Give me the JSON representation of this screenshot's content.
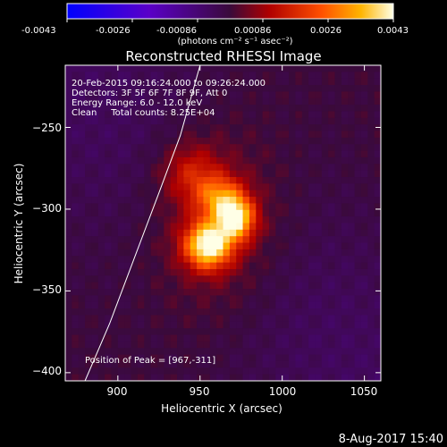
{
  "colorbar": {
    "ticks": [
      "-0.0043",
      "-0.0026",
      "-0.00086",
      "0.00086",
      "0.0026",
      "0.0043"
    ],
    "units": "(photons cm⁻² s⁻¹ asec⁻²)",
    "range": [
      -0.0043,
      0.0043
    ]
  },
  "footer": {
    "datestamp": "8-Aug-2017 15:40"
  },
  "chart_data": {
    "type": "heatmap",
    "title": "Reconstructed RHESSI Image",
    "xlabel": "Heliocentric X (arcsec)",
    "ylabel": "Heliocentric Y (arcsec)",
    "xlim": [
      868,
      1060
    ],
    "ylim": [
      -405,
      -212
    ],
    "x_ticks": [
      900,
      950,
      1000,
      1050
    ],
    "y_ticks": [
      -250,
      -300,
      -350,
      -400
    ],
    "x_tick_labels": [
      "900",
      "950",
      "1000",
      "1050"
    ],
    "y_tick_labels": [
      "−250",
      "−300",
      "−350",
      "−400"
    ],
    "annotations": [
      "20-Feb-2015 09:16:24.000 to 09:26:24.000",
      "Detectors: 3F 5F 6F 7F 8F 9F, Att 0",
      "Energy Range: 6.0 - 12.0 keV",
      "Clean     Total counts: 8.25E+04"
    ],
    "peak_label": "Position of Peak = [967,-311]",
    "peak": [
      967,
      -311
    ],
    "sources": [
      {
        "x": 955,
        "y": -322,
        "sx": 10,
        "sy": 10,
        "amp": 1.0
      },
      {
        "x": 972,
        "y": -306,
        "sx": 8,
        "sy": 9,
        "amp": 0.85
      },
      {
        "x": 962,
        "y": -293,
        "sx": 10,
        "sy": 9,
        "amp": 0.55
      },
      {
        "x": 945,
        "y": -278,
        "sx": 12,
        "sy": 12,
        "amp": 0.3
      },
      {
        "x": 960,
        "y": -308,
        "sx": 30,
        "sy": 42,
        "amp": 0.25
      }
    ],
    "limb_curve": [
      [
        880,
        -405
      ],
      [
        895,
        -370
      ],
      [
        910,
        -330
      ],
      [
        925,
        -290
      ],
      [
        938,
        -255
      ],
      [
        950,
        -212
      ]
    ]
  }
}
